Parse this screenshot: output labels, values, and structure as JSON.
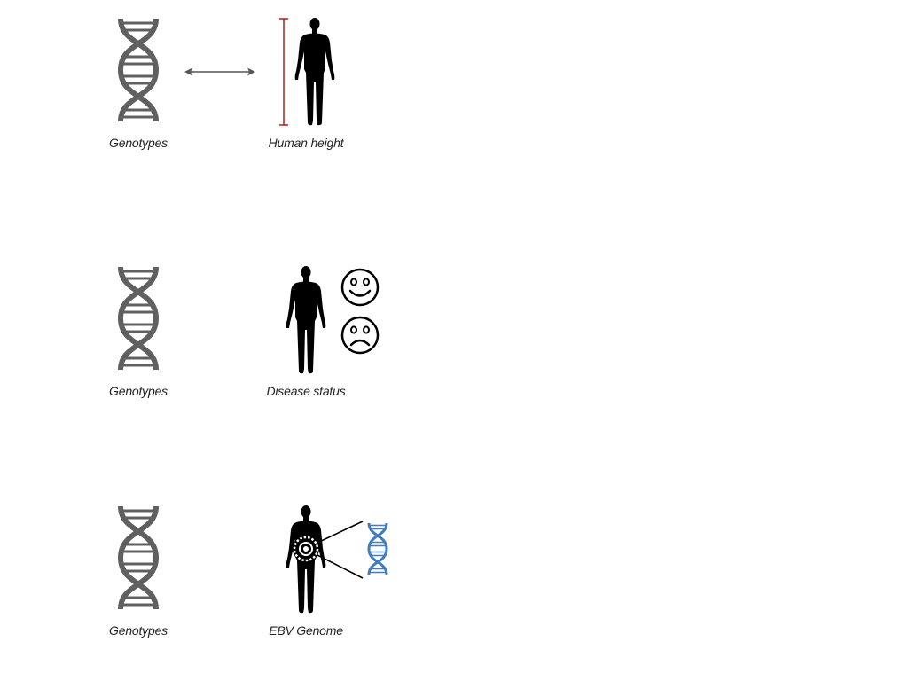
{
  "colors": {
    "dna_gray": "#606060",
    "dna_blue": "#3f7dc0",
    "figure": "#000000",
    "height_bar": "#b0201a",
    "arrow": "#555555"
  },
  "panels": [
    {
      "left_label": "Genotypes",
      "right_label": "Human height",
      "icons": [
        "dna-icon",
        "double-arrow-icon",
        "height-bar-icon",
        "human-figure-icon"
      ]
    },
    {
      "left_label": "Genotypes",
      "right_label": "Disease status",
      "icons": [
        "dna-icon",
        "human-figure-icon",
        "happy-face-icon",
        "sad-face-icon"
      ]
    },
    {
      "left_label": "Genotypes",
      "right_label": "EBV Genome",
      "icons": [
        "dna-icon",
        "human-figure-icon",
        "virus-icon",
        "dna-icon"
      ]
    }
  ]
}
